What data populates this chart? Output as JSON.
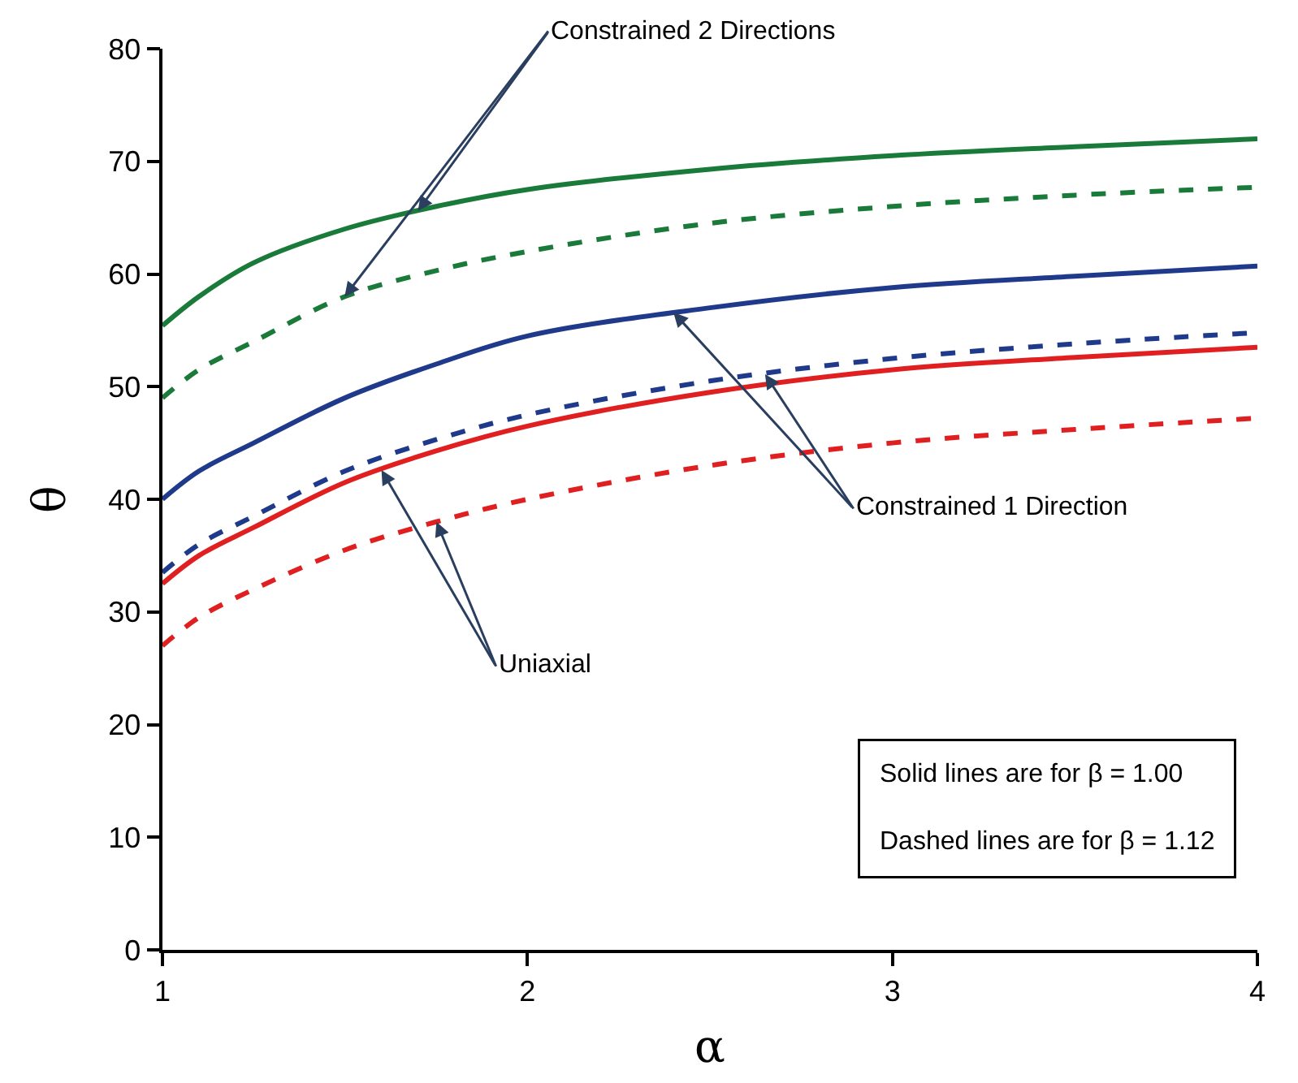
{
  "chart_data": {
    "type": "line",
    "xlabel": "α",
    "ylabel": "θ",
    "x": [
      1,
      1.1,
      1.25,
      1.5,
      1.75,
      2,
      2.5,
      3,
      3.5,
      4
    ],
    "series": [
      {
        "color": "#1a7a3a",
        "line_style": "solid",
        "values": [
          55.4,
          58,
          61,
          64,
          66,
          67.5,
          69.3,
          70.5,
          71.3,
          72
        ]
      },
      {
        "color": "#1a7a3a",
        "line_style": "dashed",
        "values": [
          49,
          51.5,
          54,
          58,
          60.3,
          62,
          64.5,
          66,
          67,
          67.7
        ]
      },
      {
        "color": "#1f3a8a",
        "line_style": "solid",
        "values": [
          40,
          42.5,
          45,
          49,
          52,
          54.5,
          57,
          58.8,
          59.8,
          60.7
        ]
      },
      {
        "color": "#1f3a8a",
        "line_style": "dashed",
        "values": [
          33.5,
          36,
          38.5,
          42.5,
          45.3,
          47.5,
          50.5,
          52.5,
          53.8,
          54.8
        ]
      },
      {
        "color": "#e02020",
        "line_style": "solid",
        "values": [
          32.5,
          35,
          37.5,
          41.5,
          44.3,
          46.5,
          49.5,
          51.5,
          52.6,
          53.5
        ]
      },
      {
        "color": "#e02020",
        "line_style": "dashed",
        "values": [
          27,
          29.5,
          32,
          35.5,
          38,
          40,
          43,
          45,
          46.2,
          47.2
        ]
      }
    ],
    "annotations": [
      {
        "text": "Constrained 2 Directions",
        "x": 1.7,
        "y": 65.6
      },
      {
        "text": "Constrained 1 Direction",
        "x": 2.4,
        "y": 56.6
      },
      {
        "text": "Uniaxial",
        "x": 1.6,
        "y": 42.6
      },
      "Solid lines are for β = 1.00",
      "Dashed lines are for β = 1.12"
    ],
    "xlim": [
      1,
      4
    ],
    "xticks": [
      1,
      2,
      3,
      4
    ],
    "ylim": [
      0,
      80
    ],
    "yticks": [
      0,
      10,
      20,
      30,
      40,
      50,
      60,
      70,
      80
    ],
    "marker": "none"
  }
}
